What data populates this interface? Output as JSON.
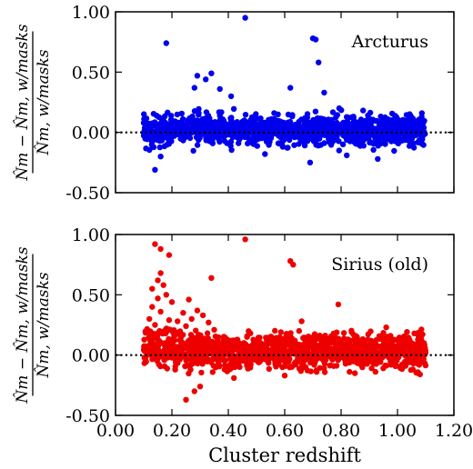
{
  "chart_data": [
    {
      "type": "scatter",
      "panel_label": "Arcturus",
      "color": "#0000ee",
      "ylabel_numerator": "N̂m − N̂m, w/masks",
      "ylabel_denominator": "N̂m, w/masks",
      "ylim": [
        -0.5,
        1.0
      ],
      "xlim": [
        0.0,
        1.2
      ],
      "yticks": [
        "1.00",
        "0.50",
        "0.00",
        "-0.50"
      ],
      "ytick_values": [
        1.0,
        0.5,
        0.0,
        -0.5
      ],
      "reference_line_y": 0.0,
      "x_range_points": [
        0.1,
        1.1
      ],
      "scatter_center": 0.02,
      "scatter_spread": 0.06,
      "outliers": [
        {
          "x": 0.46,
          "y": 0.95
        },
        {
          "x": 0.18,
          "y": 0.74
        },
        {
          "x": 0.7,
          "y": 0.78
        },
        {
          "x": 0.71,
          "y": 0.77
        },
        {
          "x": 0.72,
          "y": 0.58
        },
        {
          "x": 0.34,
          "y": 0.49
        },
        {
          "x": 0.29,
          "y": 0.47
        },
        {
          "x": 0.32,
          "y": 0.44
        },
        {
          "x": 0.62,
          "y": 0.37
        },
        {
          "x": 0.28,
          "y": 0.37
        },
        {
          "x": 0.37,
          "y": 0.36
        },
        {
          "x": 0.74,
          "y": 0.33
        },
        {
          "x": 0.41,
          "y": 0.3
        },
        {
          "x": 0.14,
          "y": -0.31
        },
        {
          "x": 0.69,
          "y": -0.25
        },
        {
          "x": 0.93,
          "y": -0.22
        },
        {
          "x": 0.16,
          "y": -0.2
        },
        {
          "x": 0.82,
          "y": -0.19
        },
        {
          "x": 0.53,
          "y": -0.18
        }
      ]
    },
    {
      "type": "scatter",
      "panel_label": "Sirius (old)",
      "color": "#ee0000",
      "ylabel_numerator": "N̂m − N̂m, w/masks",
      "ylabel_denominator": "N̂m, w/masks",
      "xlabel": "Cluster redshift",
      "ylim": [
        -0.5,
        1.0
      ],
      "xlim": [
        0.0,
        1.2
      ],
      "yticks": [
        "1.00",
        "0.50",
        "0.00",
        "-0.50"
      ],
      "ytick_values": [
        1.0,
        0.5,
        0.0,
        -0.5
      ],
      "xticks": [
        "0.00",
        "0.20",
        "0.40",
        "0.60",
        "0.80",
        "1.00",
        "1.20"
      ],
      "xtick_values": [
        0.0,
        0.2,
        0.4,
        0.6,
        0.8,
        1.0,
        1.2
      ],
      "reference_line_y": 0.0,
      "x_range_points": [
        0.1,
        1.1
      ],
      "scatter_center": 0.03,
      "scatter_spread": 0.07,
      "outliers": [
        {
          "x": 0.46,
          "y": 0.96
        },
        {
          "x": 0.14,
          "y": 0.92
        },
        {
          "x": 0.16,
          "y": 0.88
        },
        {
          "x": 0.19,
          "y": 0.83
        },
        {
          "x": 0.62,
          "y": 0.78
        },
        {
          "x": 0.63,
          "y": 0.75
        },
        {
          "x": 0.16,
          "y": 0.68
        },
        {
          "x": 0.34,
          "y": 0.64
        },
        {
          "x": 0.15,
          "y": 0.62
        },
        {
          "x": 0.17,
          "y": 0.58
        },
        {
          "x": 0.13,
          "y": 0.55
        },
        {
          "x": 0.18,
          "y": 0.5
        },
        {
          "x": 0.15,
          "y": 0.47
        },
        {
          "x": 0.26,
          "y": 0.46
        },
        {
          "x": 0.2,
          "y": 0.44
        },
        {
          "x": 0.79,
          "y": 0.42
        },
        {
          "x": 0.13,
          "y": 0.4
        },
        {
          "x": 0.29,
          "y": 0.37
        },
        {
          "x": 0.16,
          "y": 0.36
        },
        {
          "x": 0.24,
          "y": 0.35
        },
        {
          "x": 0.31,
          "y": 0.33
        },
        {
          "x": 0.12,
          "y": 0.3
        },
        {
          "x": 0.19,
          "y": 0.29
        },
        {
          "x": 0.22,
          "y": 0.28
        },
        {
          "x": 0.27,
          "y": 0.3
        },
        {
          "x": 0.33,
          "y": 0.27
        },
        {
          "x": 0.14,
          "y": 0.25
        },
        {
          "x": 0.25,
          "y": 0.24
        },
        {
          "x": 0.18,
          "y": 0.22
        },
        {
          "x": 0.35,
          "y": 0.21
        },
        {
          "x": 0.96,
          "y": 0.23
        },
        {
          "x": 0.66,
          "y": 0.28
        },
        {
          "x": 0.25,
          "y": -0.37
        },
        {
          "x": 0.28,
          "y": -0.3
        },
        {
          "x": 0.3,
          "y": -0.26
        },
        {
          "x": 0.42,
          "y": -0.19
        },
        {
          "x": 0.6,
          "y": -0.17
        },
        {
          "x": 1.08,
          "y": -0.16
        }
      ]
    }
  ]
}
